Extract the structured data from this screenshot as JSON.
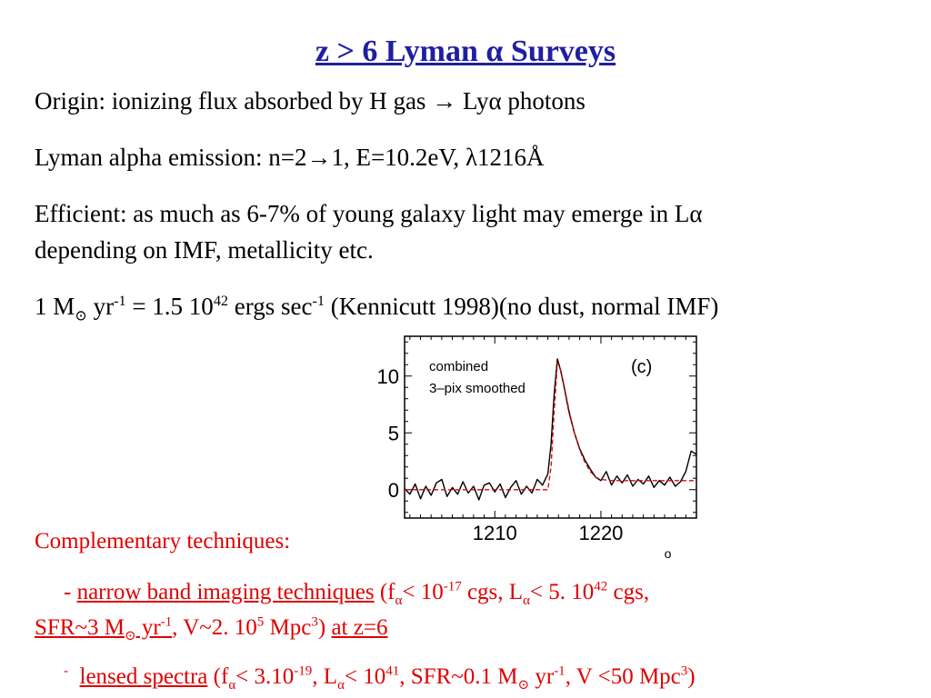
{
  "title": {
    "prefix": "z > 6 Lyman ",
    "alpha": "α",
    "suffix": " Surveys"
  },
  "lines": {
    "origin": {
      "a": "Origin: ionizing flux absorbed by H gas ",
      "arrow": "→",
      "b": " Ly",
      "alpha": "α",
      "c": " photons"
    },
    "emission": {
      "a": "Lyman alpha emission: n=2",
      "arrow": "→",
      "b": "1, E=10.2eV, ",
      "lambda": "λ",
      "c": "1216Å"
    },
    "efficient1": {
      "a": "Efficient: as much as 6-7% of young galaxy light may emerge in L",
      "alpha": "α"
    },
    "efficient2": "depending on IMF, metallicity etc.",
    "kennicutt": {
      "a": "1 M",
      "sun": "⊙",
      "b": " yr",
      "sup1": "-1",
      "c": " = 1.5 10",
      "sup2": "42",
      "d": " ergs sec",
      "sup3": "-1",
      "e": " (Kennicutt 1998)(no dust, normal IMF)"
    }
  },
  "complementary": {
    "heading": "Complementary techniques:",
    "nb": {
      "dash": "- ",
      "link": "narrow band imaging techniques",
      "p1": "  (f",
      "alpha1": "α",
      "p2": "< 10",
      "sup1": "-17",
      "p3": " cgs, L",
      "alpha2": "α",
      "p4": "< 5. 10",
      "sup2": "42",
      "p5": " cgs,",
      "sfr_a": "SFR~3 M",
      "sun": "⊙",
      "sfr_b": " yr",
      "sup3": "-1",
      "p6": ", V~2. 10",
      "sup4": "5",
      "p7": " Mpc",
      "sup5": "3",
      "p8": ") ",
      "z": "at z=6"
    },
    "lensed": {
      "dash": "-",
      "link": "lensed spectra",
      "p1": " (f",
      "alpha1": "α",
      "p2": "< 3.10",
      "sup1": "-19",
      "p3": ", L",
      "alpha2": "α",
      "p4": "< 10",
      "sup2": "41",
      "p5": ", SFR~0.1 M",
      "sun": "⊙",
      "p6": " yr",
      "sup3": "-1",
      "p7": ", V <50 Mpc",
      "sup4": "3",
      "p8": ")"
    }
  },
  "chart_data": {
    "type": "line",
    "title": "",
    "xlabel": "",
    "ylabel": "",
    "xlim": [
      1201.5,
      1229
    ],
    "ylim": [
      -2.5,
      13.5
    ],
    "xticks": [
      1210,
      1220
    ],
    "yticks": [
      0,
      5,
      10
    ],
    "legend": [
      "combined",
      "3–pix smoothed"
    ],
    "panel_label": "(c)",
    "x_unit_glyph": "o",
    "series": [
      {
        "color": "#000000",
        "x": [
          1201.5,
          1202,
          1202.5,
          1203,
          1203.5,
          1204,
          1204.5,
          1205,
          1205.5,
          1206,
          1206.5,
          1207,
          1207.5,
          1208,
          1208.5,
          1209,
          1209.5,
          1210,
          1210.5,
          1211,
          1211.5,
          1212,
          1212.5,
          1213,
          1213.5,
          1214,
          1214.5,
          1215,
          1215.3,
          1215.6,
          1215.9,
          1216.2,
          1216.5,
          1217,
          1217.5,
          1218,
          1218.5,
          1219,
          1219.5,
          1220,
          1220.5,
          1221,
          1221.5,
          1222,
          1222.5,
          1223,
          1223.5,
          1224,
          1224.5,
          1225,
          1225.5,
          1226,
          1226.5,
          1227,
          1227.5,
          1228,
          1228.5,
          1229
        ],
        "y": [
          0.1,
          -0.4,
          0.5,
          -0.8,
          0.3,
          -0.5,
          0.6,
          0.9,
          -0.6,
          0.2,
          -0.4,
          0.7,
          -0.3,
          0.3,
          -0.9,
          0.4,
          0.6,
          -0.2,
          0.5,
          -0.7,
          0.2,
          0.8,
          -0.4,
          0.3,
          -0.3,
          0.9,
          0.4,
          1.4,
          4.0,
          8.5,
          11.5,
          10.5,
          9.2,
          6.8,
          5.0,
          3.6,
          2.6,
          1.8,
          1.1,
          0.8,
          1.6,
          0.4,
          1.2,
          0.6,
          1.3,
          0.3,
          0.9,
          0.5,
          1.2,
          0.2,
          0.8,
          0.4,
          1.1,
          0.3,
          0.7,
          1.6,
          3.4,
          3.1
        ]
      },
      {
        "color": "#e00000",
        "dashed": true,
        "x": [
          1201.5,
          1215.0,
          1215.3,
          1215.6,
          1215.9,
          1216.2,
          1216.5,
          1217,
          1217.5,
          1218,
          1218.5,
          1219,
          1219.5,
          1220,
          1221,
          1222,
          1224,
          1229
        ],
        "y": [
          0,
          0,
          2.0,
          7.0,
          11.2,
          10.6,
          9.3,
          7.0,
          5.0,
          3.5,
          2.4,
          1.6,
          1.1,
          0.9,
          0.8,
          0.8,
          0.8,
          0.8
        ]
      }
    ]
  }
}
